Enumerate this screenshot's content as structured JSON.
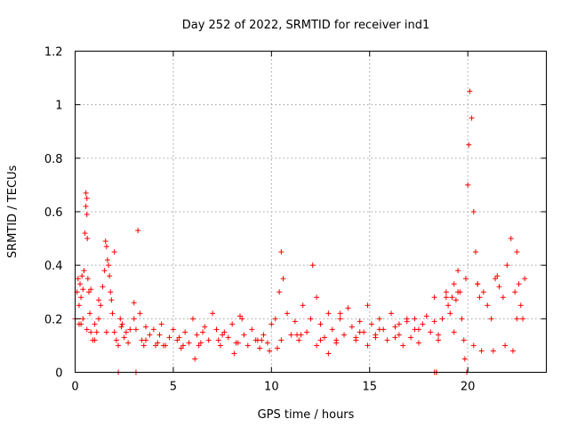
{
  "chart_data": {
    "type": "scatter",
    "title": "Day 252 of 2022, SRMTID for receiver ind1",
    "xlabel": "GPS time / hours",
    "ylabel": "SRMTID / TECUs",
    "xlim": [
      0,
      24
    ],
    "ylim": [
      0,
      1.2
    ],
    "xticks": [
      0,
      5,
      10,
      15,
      20
    ],
    "xtick_labels": [
      "0",
      "5",
      "10",
      "15",
      "20"
    ],
    "yticks": [
      0,
      0.2,
      0.4,
      0.6,
      0.8,
      1.0,
      1.2
    ],
    "ytick_labels": [
      "0",
      "0.2",
      "0.4",
      "0.6",
      "0.8",
      "1",
      "1.2"
    ],
    "grid": true,
    "marker": "+",
    "color": "#ff0000",
    "series": [
      {
        "name": "SRMTID",
        "x": [
          0.0,
          0.1,
          0.15,
          0.2,
          0.25,
          0.3,
          0.35,
          0.4,
          0.45,
          0.5,
          0.55,
          0.55,
          0.6,
          0.6,
          0.62,
          0.65,
          0.7,
          0.75,
          0.8,
          0.9,
          1.0,
          1.1,
          1.2,
          1.3,
          1.4,
          1.5,
          1.55,
          1.6,
          1.65,
          1.7,
          1.75,
          1.8,
          1.85,
          1.9,
          2.0,
          2.1,
          2.2,
          2.3,
          2.35,
          2.5,
          2.6,
          2.7,
          2.8,
          3.0,
          3.1,
          3.2,
          3.3,
          3.4,
          3.5,
          3.6,
          3.8,
          4.0,
          4.2,
          4.4,
          4.6,
          4.8,
          5.0,
          5.2,
          5.4,
          5.6,
          5.8,
          6.0,
          6.2,
          6.4,
          6.6,
          6.8,
          7.0,
          7.2,
          7.4,
          7.6,
          7.8,
          8.0,
          8.2,
          8.4,
          8.6,
          8.8,
          9.0,
          9.2,
          9.4,
          9.6,
          9.8,
          10.0,
          10.2,
          10.4,
          10.5,
          10.6,
          10.8,
          11.0,
          11.2,
          11.4,
          11.6,
          11.8,
          12.0,
          12.1,
          12.3,
          12.5,
          12.7,
          12.9,
          13.1,
          13.3,
          13.5,
          13.7,
          13.9,
          14.1,
          14.3,
          14.5,
          14.7,
          14.9,
          15.1,
          15.3,
          15.5,
          15.7,
          15.9,
          16.1,
          16.3,
          16.5,
          16.7,
          16.9,
          17.1,
          17.3,
          17.5,
          17.7,
          17.9,
          18.1,
          18.3,
          18.4,
          18.5,
          18.7,
          18.9,
          19.0,
          19.1,
          19.2,
          19.3,
          19.4,
          19.5,
          19.6,
          19.7,
          19.8,
          19.85,
          19.9,
          19.95,
          20.0,
          20.05,
          20.1,
          20.2,
          20.3,
          20.4,
          20.5,
          20.6,
          20.8,
          21.0,
          21.2,
          21.4,
          21.6,
          21.8,
          22.0,
          22.2,
          22.4,
          22.5,
          22.6,
          22.7,
          22.8,
          22.9,
          0.3,
          0.8,
          1.2,
          2.0,
          3.0,
          4.5,
          5.5,
          6.5,
          7.5,
          8.5,
          9.5,
          10.5,
          11.5,
          12.5,
          13.5,
          14.5,
          15.5,
          16.5,
          17.5,
          18.5,
          19.5,
          20.5,
          21.5,
          22.5,
          0.2,
          0.4,
          0.6,
          1.0,
          1.6,
          2.4,
          3.6,
          4.3,
          5.3,
          6.3,
          7.3,
          8.3,
          9.3,
          10.3,
          11.3,
          12.3,
          13.3,
          14.3,
          15.3,
          16.3,
          17.3,
          18.3,
          19.3,
          20.3,
          21.3,
          22.3,
          4.1,
          6.1,
          8.1,
          9.9,
          12.9,
          14.9,
          16.9,
          18.9,
          20.7,
          21.9,
          2.2,
          3.1,
          18.3,
          18.4
        ],
        "y": [
          0.2,
          0.3,
          0.35,
          0.25,
          0.33,
          0.28,
          0.36,
          0.31,
          0.38,
          0.52,
          0.62,
          0.67,
          0.65,
          0.59,
          0.5,
          0.35,
          0.3,
          0.22,
          0.15,
          0.12,
          0.18,
          0.15,
          0.2,
          0.25,
          0.32,
          0.38,
          0.49,
          0.47,
          0.42,
          0.4,
          0.36,
          0.3,
          0.27,
          0.22,
          0.15,
          0.12,
          0.1,
          0.2,
          0.17,
          0.13,
          0.15,
          0.11,
          0.16,
          0.2,
          0.16,
          0.53,
          0.22,
          0.12,
          0.1,
          0.17,
          0.14,
          0.16,
          0.11,
          0.18,
          0.1,
          0.13,
          0.16,
          0.12,
          0.09,
          0.15,
          0.11,
          0.2,
          0.14,
          0.11,
          0.17,
          0.12,
          0.22,
          0.16,
          0.1,
          0.15,
          0.13,
          0.18,
          0.11,
          0.21,
          0.14,
          0.1,
          0.16,
          0.12,
          0.09,
          0.14,
          0.11,
          0.18,
          0.2,
          0.3,
          0.45,
          0.35,
          0.22,
          0.14,
          0.19,
          0.12,
          0.25,
          0.15,
          0.2,
          0.4,
          0.28,
          0.18,
          0.13,
          0.22,
          0.16,
          0.11,
          0.2,
          0.14,
          0.24,
          0.17,
          0.12,
          0.19,
          0.15,
          0.25,
          0.18,
          0.13,
          0.2,
          0.16,
          0.12,
          0.22,
          0.17,
          0.14,
          0.1,
          0.19,
          0.13,
          0.16,
          0.11,
          0.18,
          0.21,
          0.15,
          0.19,
          0.0,
          0.14,
          0.2,
          0.3,
          0.25,
          0.22,
          0.28,
          0.33,
          0.27,
          0.38,
          0.3,
          0.2,
          0.12,
          0.05,
          0.35,
          0.0,
          0.7,
          0.85,
          1.05,
          0.95,
          0.6,
          0.45,
          0.33,
          0.28,
          0.3,
          0.25,
          0.2,
          0.35,
          0.32,
          0.28,
          0.4,
          0.5,
          0.3,
          0.45,
          0.33,
          0.25,
          0.2,
          0.35,
          0.18,
          0.31,
          0.27,
          0.45,
          0.26,
          0.1,
          0.1,
          0.15,
          0.14,
          0.2,
          0.12,
          0.12,
          0.14,
          0.12,
          0.22,
          0.15,
          0.16,
          0.18,
          0.16,
          0.12,
          0.3,
          0.33,
          0.36,
          0.2,
          0.18,
          0.2,
          0.16,
          0.12,
          0.15,
          0.18,
          0.12,
          0.14,
          0.13,
          0.1,
          0.12,
          0.11,
          0.12,
          0.09,
          0.14,
          0.1,
          0.12,
          0.13,
          0.14,
          0.13,
          0.2,
          0.28,
          0.15,
          0.1,
          0.08,
          0.08,
          0.1,
          0.05,
          0.07,
          0.08,
          0.07,
          0.1,
          0.2,
          0.28,
          0.08,
          0.1,
          0.0,
          0.0,
          0.0,
          0.0
        ]
      }
    ]
  }
}
